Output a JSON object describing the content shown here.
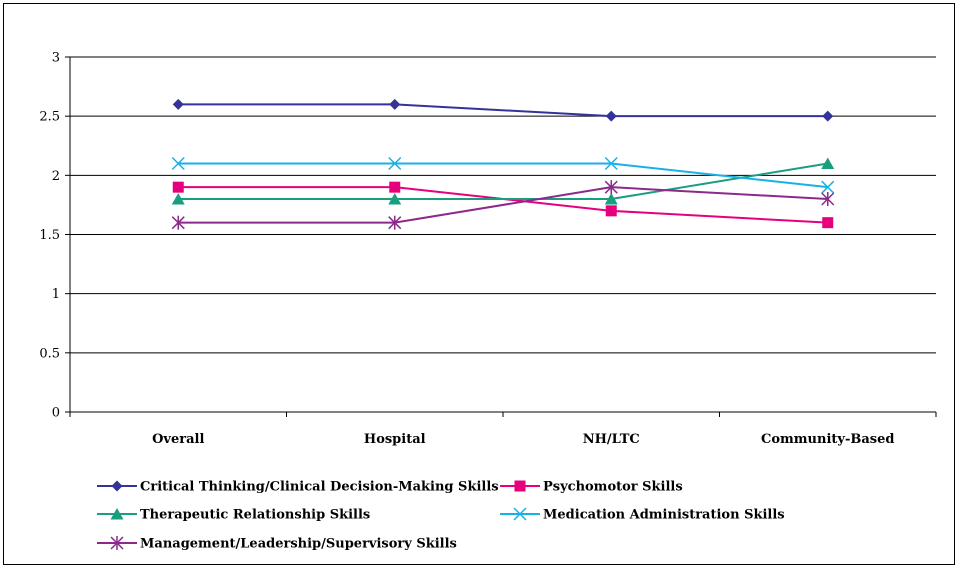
{
  "chart_data": {
    "type": "line",
    "categories": [
      "Overall",
      "Hospital",
      "NH/LTC",
      "Community-Based"
    ],
    "ylim": [
      0,
      3
    ],
    "yticks": [
      "0",
      "0.5",
      "1",
      "1.5",
      "2",
      "2.5",
      "3"
    ],
    "grid": true,
    "legend_position": "bottom",
    "series": [
      {
        "name": "Critical Thinking/Clinical Decision-Making Skills",
        "values": [
          2.6,
          2.6,
          2.5,
          2.5
        ],
        "color": "#333399",
        "marker": "diamond"
      },
      {
        "name": "Psychomotor Skills",
        "values": [
          1.9,
          1.9,
          1.7,
          1.6
        ],
        "color": "#e6007e",
        "marker": "square"
      },
      {
        "name": "Therapeutic Relationship Skills",
        "values": [
          1.8,
          1.8,
          1.8,
          2.1
        ],
        "color": "#1a9e80",
        "marker": "triangle"
      },
      {
        "name": "Medication Administration Skills",
        "values": [
          2.1,
          2.1,
          2.1,
          1.9
        ],
        "color": "#1ab0e6",
        "marker": "x"
      },
      {
        "name": "Management/Leadership/Supervisory Skills",
        "values": [
          1.6,
          1.6,
          1.9,
          1.8
        ],
        "color": "#8b2a8b",
        "marker": "star"
      }
    ]
  }
}
